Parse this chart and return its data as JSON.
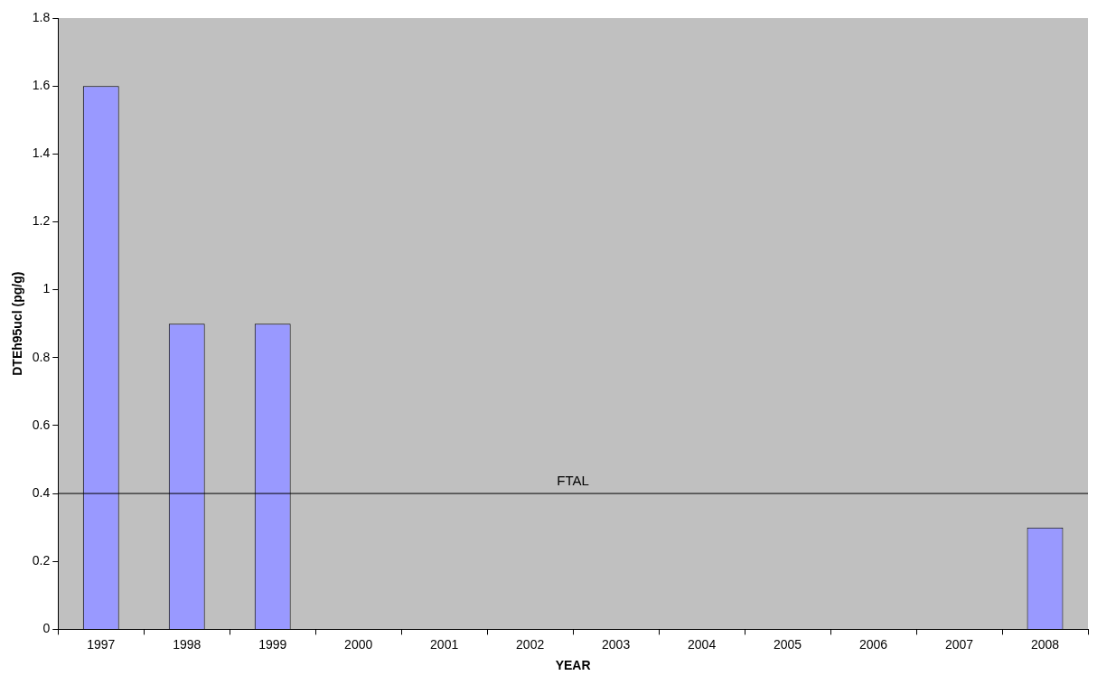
{
  "chart_data": {
    "type": "bar",
    "xlabel": "YEAR",
    "ylabel": "DTEh95ucl (pg/g)",
    "categories": [
      "1997",
      "1998",
      "1999",
      "2000",
      "2001",
      "2002",
      "2003",
      "2004",
      "2005",
      "2006",
      "2007",
      "2008"
    ],
    "series": [
      {
        "color": "#9999ff",
        "values": [
          1.6,
          0.9,
          0.9,
          null,
          null,
          null,
          null,
          null,
          null,
          null,
          null,
          0.3
        ]
      }
    ],
    "ylim": [
      0,
      1.8
    ],
    "yticks": [
      0,
      0.2,
      0.4,
      0.6,
      0.8,
      1,
      1.2,
      1.4,
      1.6,
      1.8
    ],
    "grid": false,
    "legend": false,
    "ref_lines": [
      {
        "axis": "y",
        "value": 0.4,
        "label": "FTAL",
        "color": "#000000"
      }
    ]
  }
}
